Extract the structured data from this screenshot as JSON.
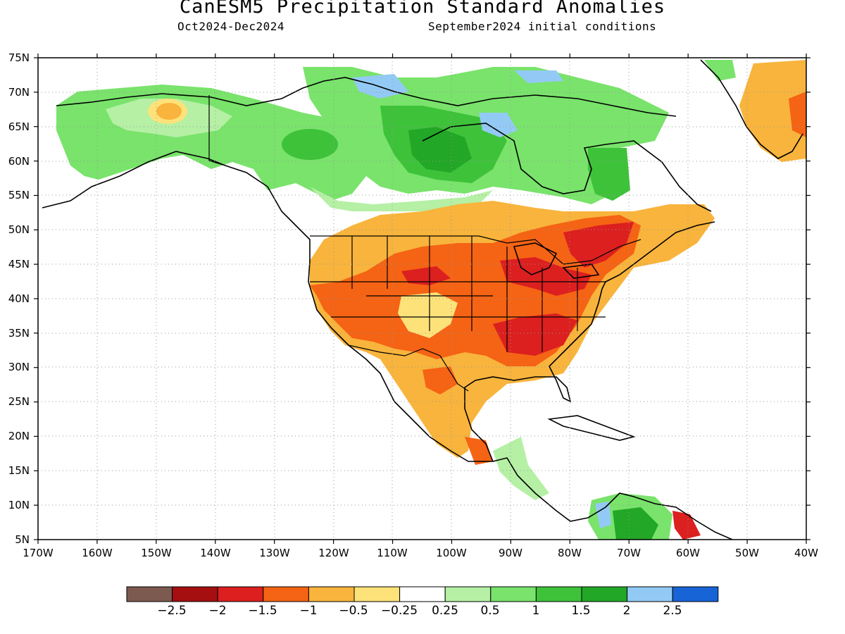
{
  "header": {
    "title": "CanESM5 Precipitation Standard Anomalies",
    "period": "Oct2024-Dec2024",
    "init": "September2024 initial conditions"
  },
  "map": {
    "lat_labels": [
      "75N",
      "70N",
      "65N",
      "60N",
      "55N",
      "50N",
      "45N",
      "40N",
      "35N",
      "30N",
      "25N",
      "20N",
      "15N",
      "10N",
      "5N"
    ],
    "lon_labels": [
      "170W",
      "160W",
      "150W",
      "140W",
      "130W",
      "120W",
      "110W",
      "100W",
      "90W",
      "80W",
      "70W",
      "60W",
      "50W",
      "40W"
    ]
  },
  "legend": {
    "labels": [
      "−2.5",
      "−2",
      "−1.5",
      "−1",
      "−0.5",
      "−0.25",
      "0.25",
      "0.5",
      "1",
      "1.5",
      "2",
      "2.5"
    ],
    "colors": [
      "#7d5a50",
      "#a50f0f",
      "#dc1f1f",
      "#f56314",
      "#f8b43c",
      "#fde27a",
      "#ffffff",
      "#b5f0a5",
      "#79e36b",
      "#3ec23a",
      "#22a726",
      "#93caf5",
      "#1764d7"
    ]
  }
}
